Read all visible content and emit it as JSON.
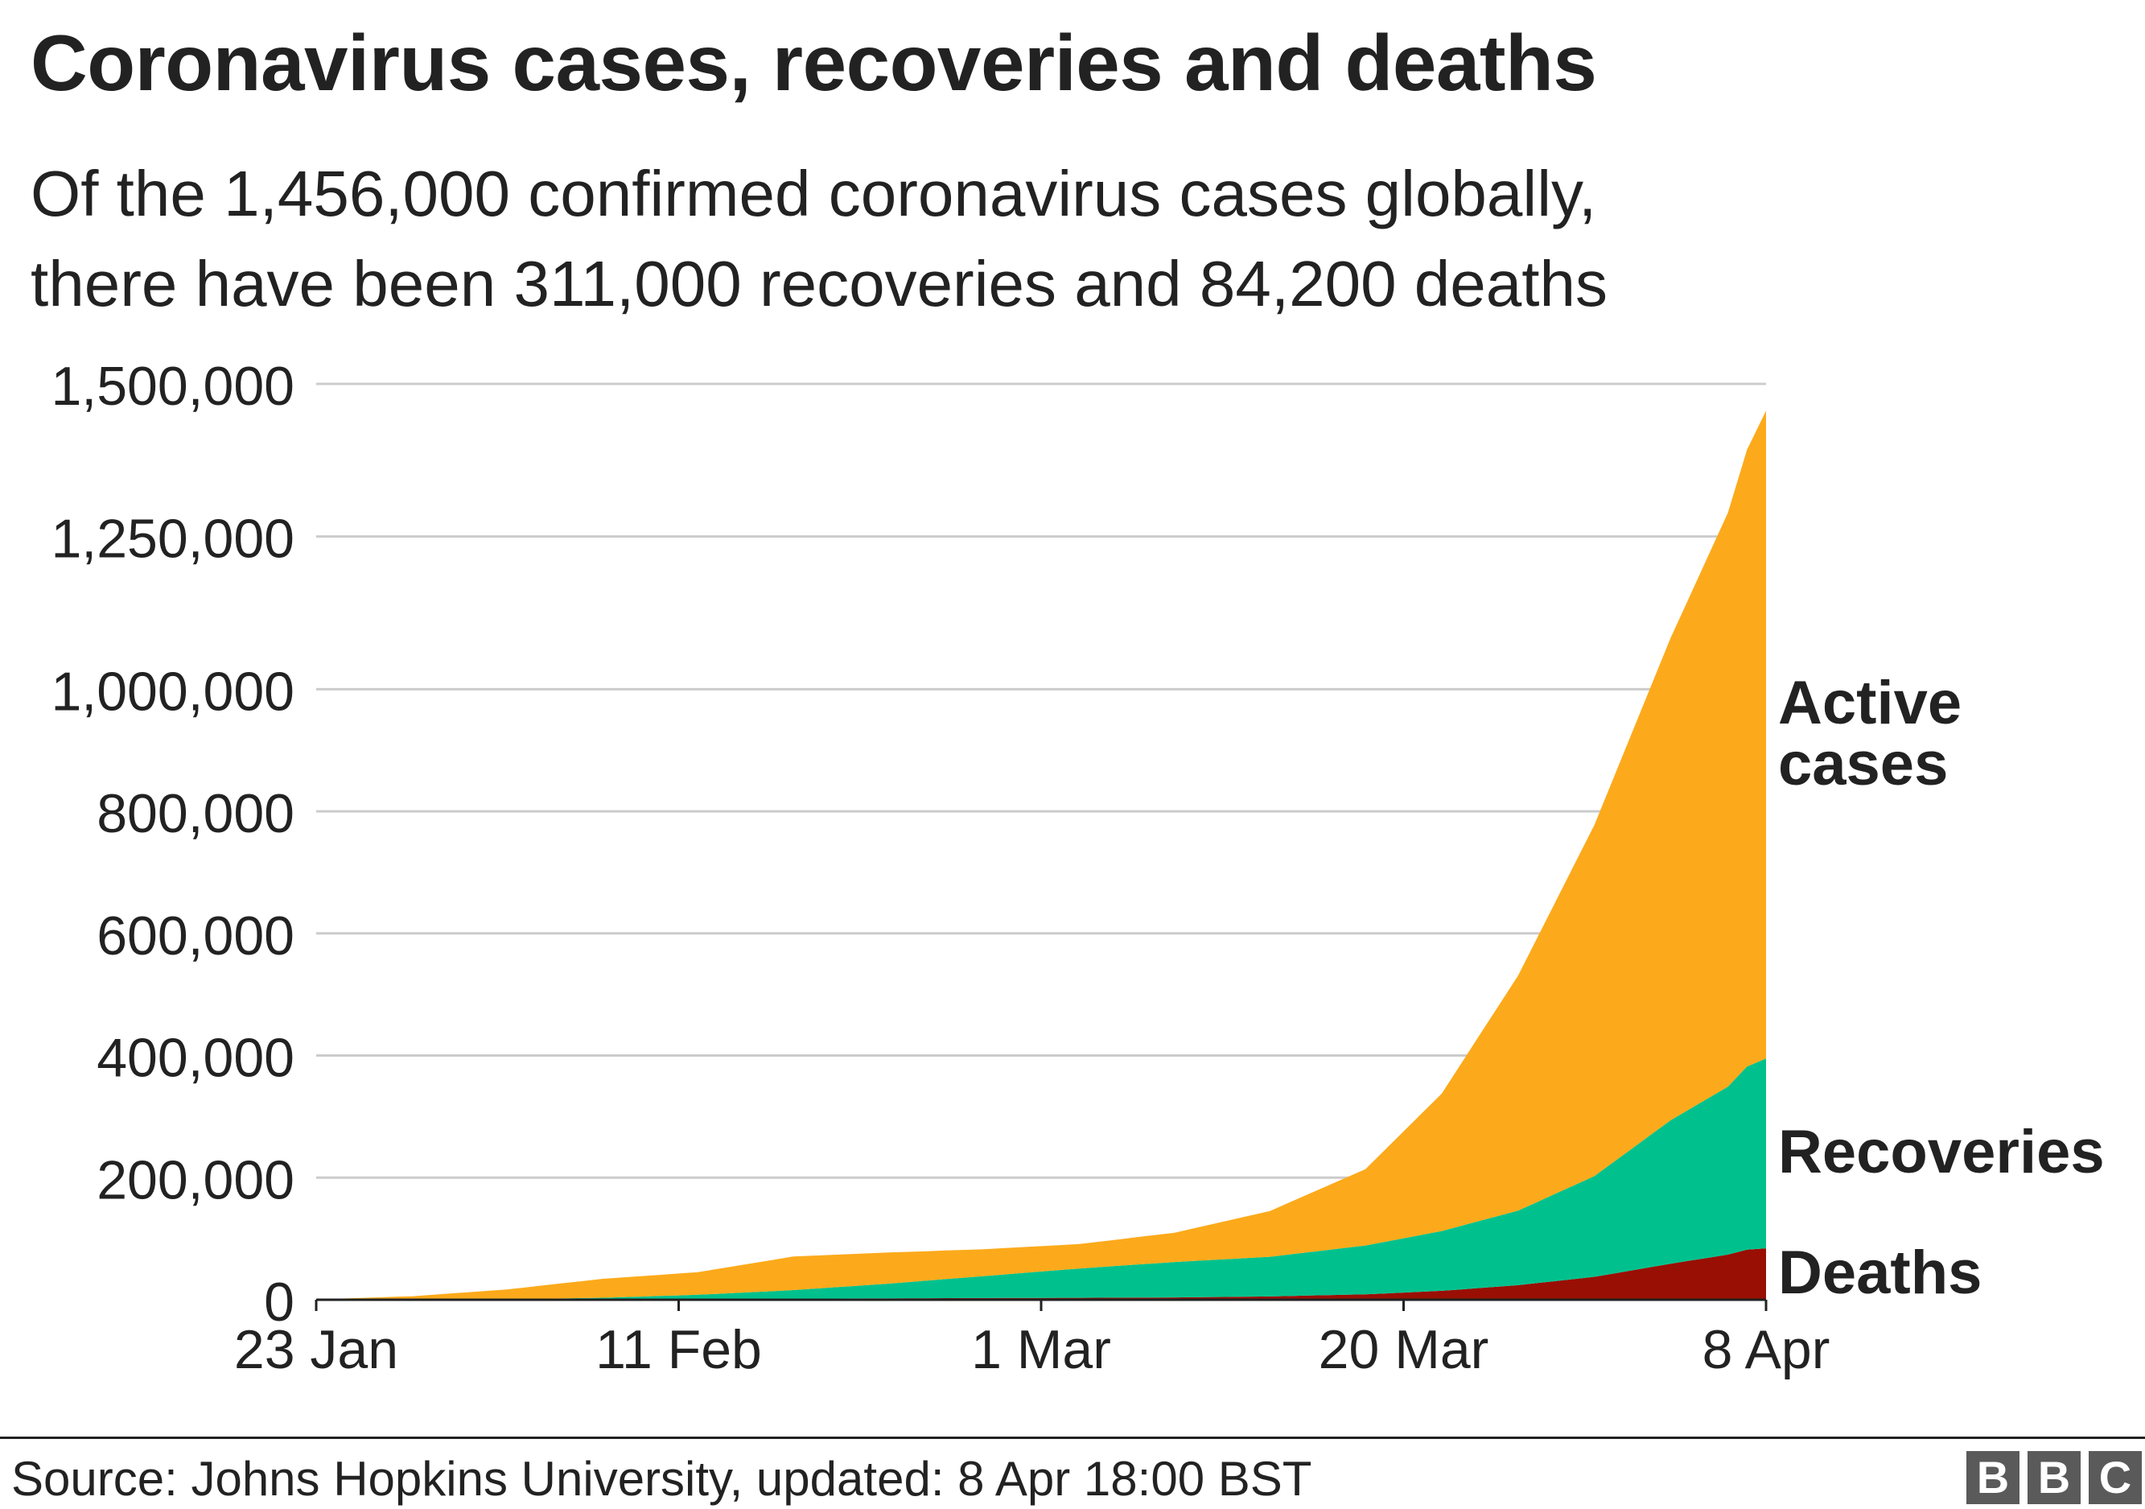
{
  "header": {
    "title": "Coronavirus cases, recoveries and deaths",
    "subtitle_line1": "Of the 1,456,000 confirmed coronavirus cases globally,",
    "subtitle_line2": "there have been 311,000 recoveries and 84,200 deaths"
  },
  "footer": {
    "source": "Source: Johns Hopkins University, updated: 8 Apr 18:00 BST",
    "logo_letters": [
      "B",
      "B",
      "C"
    ]
  },
  "chart_data": {
    "type": "area",
    "stacked": true,
    "x_tick_labels": [
      "23 Jan",
      "11 Feb",
      "1 Mar",
      "20 Mar",
      "8 Apr"
    ],
    "x_tick_dates": [
      "2020-01-23",
      "2020-02-11",
      "2020-03-01",
      "2020-03-20",
      "2020-04-08"
    ],
    "y_tick_labels": [
      "0",
      "200,000",
      "400,000",
      "600,000",
      "800,000",
      "1,000,000",
      "1,250,000",
      "1,500,000"
    ],
    "y_tick_values": [
      0,
      200000,
      400000,
      600000,
      800000,
      1000000,
      1250000,
      1500000
    ],
    "ylim": [
      0,
      1500000
    ],
    "xlim": [
      "2020-01-23",
      "2020-04-08"
    ],
    "grid": true,
    "legend": "direct labels at right end of series",
    "series_order": "bottom to top",
    "series": [
      {
        "name": "Deaths",
        "label_lines": [
          "Deaths"
        ],
        "color": "#990f04",
        "points": [
          [
            "2020-01-23",
            20
          ],
          [
            "2020-01-28",
            100
          ],
          [
            "2020-02-02",
            360
          ],
          [
            "2020-02-07",
            640
          ],
          [
            "2020-02-12",
            1110
          ],
          [
            "2020-02-17",
            1770
          ],
          [
            "2020-02-22",
            2360
          ],
          [
            "2020-02-27",
            2800
          ],
          [
            "2020-03-03",
            3200
          ],
          [
            "2020-03-08",
            3800
          ],
          [
            "2020-03-13",
            5400
          ],
          [
            "2020-03-18",
            8900
          ],
          [
            "2020-03-22",
            14600
          ],
          [
            "2020-03-26",
            23900
          ],
          [
            "2020-03-30",
            37500
          ],
          [
            "2020-04-03",
            59000
          ],
          [
            "2020-04-06",
            74000
          ],
          [
            "2020-04-07",
            82000
          ],
          [
            "2020-04-08",
            84200
          ]
        ]
      },
      {
        "name": "Recoveries",
        "label_lines": [
          "Recoveries"
        ],
        "color": "#00c18d",
        "points": [
          [
            "2020-01-23",
            30
          ],
          [
            "2020-01-28",
            100
          ],
          [
            "2020-02-02",
            470
          ],
          [
            "2020-02-07",
            2600
          ],
          [
            "2020-02-12",
            7000
          ],
          [
            "2020-02-17",
            14000
          ],
          [
            "2020-02-22",
            24000
          ],
          [
            "2020-02-27",
            36000
          ],
          [
            "2020-03-03",
            48000
          ],
          [
            "2020-03-08",
            58000
          ],
          [
            "2020-03-13",
            65000
          ],
          [
            "2020-03-18",
            80000
          ],
          [
            "2020-03-22",
            98000
          ],
          [
            "2020-03-26",
            122000
          ],
          [
            "2020-03-30",
            165000
          ],
          [
            "2020-04-03",
            235000
          ],
          [
            "2020-04-06",
            275000
          ],
          [
            "2020-04-07",
            300000
          ],
          [
            "2020-04-08",
            311000
          ]
        ]
      },
      {
        "name": "Active cases",
        "label_lines": [
          "Active",
          "cases"
        ],
        "color": "#fcaa1b",
        "points": [
          [
            "2020-01-23",
            550
          ],
          [
            "2020-01-28",
            5500
          ],
          [
            "2020-02-02",
            16000
          ],
          [
            "2020-02-07",
            31000
          ],
          [
            "2020-02-12",
            37000
          ],
          [
            "2020-02-17",
            55000
          ],
          [
            "2020-02-22",
            51000
          ],
          [
            "2020-02-27",
            44000
          ],
          [
            "2020-03-03",
            40000
          ],
          [
            "2020-03-08",
            48000
          ],
          [
            "2020-03-13",
            75000
          ],
          [
            "2020-03-18",
            125000
          ],
          [
            "2020-03-22",
            225000
          ],
          [
            "2020-03-26",
            385000
          ],
          [
            "2020-03-30",
            575000
          ],
          [
            "2020-04-03",
            790000
          ],
          [
            "2020-04-06",
            940000
          ],
          [
            "2020-04-07",
            1010000
          ],
          [
            "2020-04-08",
            1060800
          ]
        ]
      }
    ],
    "axis_color": "#222222",
    "grid_color": "#cccccc"
  }
}
